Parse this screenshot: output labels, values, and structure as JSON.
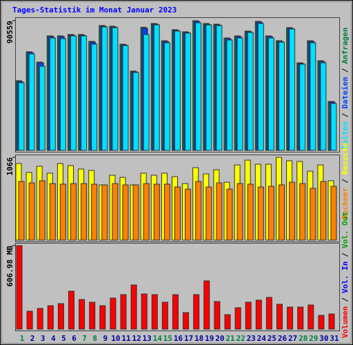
{
  "chart_data": [
    {
      "type": "bar",
      "title": "Tages-Statistik im Monat Januar 2023",
      "legend_separator": "/",
      "ylim": [
        0,
        90559
      ],
      "yticks": [
        90559
      ],
      "series": [
        {
          "name": "Seiten",
          "color": "#00e0ff",
          "values": [
            47200,
            67430,
            58770,
            78520,
            78040,
            79960,
            79960,
            74180,
            86230,
            85740,
            73210,
            54440,
            80930,
            87670,
            75140,
            83330,
            81890,
            89110,
            87670,
            87190,
            77070,
            78520,
            82370,
            88630,
            78520,
            75620,
            84780,
            60210,
            75140,
            61180,
            32750
          ]
        },
        {
          "name": "Dateien",
          "color": "#0040ff",
          "values": [
            48150,
            68380,
            61160,
            79460,
            79460,
            80430,
            80430,
            75610,
            86690,
            86210,
            73680,
            54900,
            85260,
            88130,
            76090,
            83800,
            82350,
            90050,
            88130,
            87650,
            78020,
            79460,
            82830,
            89600,
            79460,
            76090,
            85240,
            60680,
            76090,
            62120,
            33700
          ]
        },
        {
          "name": "Anfragen",
          "color": "#008040",
          "values": [
            48650,
            68880,
            61660,
            79960,
            79960,
            80930,
            80930,
            76110,
            87190,
            86710,
            74180,
            55400,
            86000,
            88630,
            76590,
            84300,
            82850,
            90559,
            88630,
            88150,
            78520,
            79960,
            83330,
            90100,
            79960,
            76590,
            85740,
            61180,
            76590,
            62620,
            34200
          ]
        }
      ]
    },
    {
      "type": "bar",
      "legend_separator": "/",
      "ylim": [
        0,
        1066
      ],
      "yticks": [
        1066
      ],
      "series": [
        {
          "name": "Rechner",
          "color": "#ff8000",
          "values": [
            755,
            737,
            764,
            728,
            720,
            728,
            728,
            720,
            711,
            728,
            711,
            711,
            728,
            720,
            720,
            684,
            657,
            755,
            684,
            737,
            657,
            728,
            720,
            684,
            693,
            711,
            746,
            728,
            666,
            755,
            693
          ]
        },
        {
          "name": "Besuche",
          "color": "#ffff00",
          "values": [
            986,
            871,
            950,
            862,
            986,
            959,
            915,
            897,
            711,
            835,
            808,
            711,
            862,
            835,
            862,
            817,
            728,
            933,
            853,
            906,
            746,
            968,
            1030,
            977,
            977,
            1066,
            1022,
            1013,
            888,
            968,
            764
          ]
        }
      ]
    },
    {
      "type": "bar",
      "legend_separator": "/",
      "ylim": [
        0,
        606.98
      ],
      "yticks": [
        {
          "value": 606.98,
          "label": "606.98 MB"
        }
      ],
      "categories": [
        "1",
        "2",
        "3",
        "4",
        "5",
        "6",
        "7",
        "8",
        "9",
        "10",
        "11",
        "12",
        "13",
        "14",
        "15",
        "16",
        "17",
        "18",
        "19",
        "20",
        "21",
        "22",
        "23",
        "24",
        "25",
        "26",
        "27",
        "28",
        "29",
        "30",
        "31"
      ],
      "tick_colors": [
        "#008040",
        "#0000a0",
        "#0000a0",
        "#0000a0",
        "#0000a0",
        "#0000a0",
        "#008040",
        "#008040",
        "#0000a0",
        "#0000a0",
        "#0000a0",
        "#0000a0",
        "#0000a0",
        "#008040",
        "#008040",
        "#0000a0",
        "#0000a0",
        "#0000a0",
        "#0000a0",
        "#0000a0",
        "#008040",
        "#008040",
        "#0000a0",
        "#0000a0",
        "#0000a0",
        "#0000a0",
        "#0000a0",
        "#008040",
        "#008040",
        "#0000a0",
        "#0000a0"
      ],
      "series": [
        {
          "name": "Volumen",
          "color": "#ff0000",
          "values": [
            606.98,
            130.4,
            150.5,
            170.5,
            185.6,
            275.9,
            215.7,
            195.6,
            170.5,
            225.7,
            250.8,
            321.0,
            255.8,
            250.8,
            195.6,
            250.8,
            120.4,
            250.8,
            351.1,
            200.6,
            105.3,
            155.5,
            195.6,
            210.7,
            230.7,
            180.6,
            160.5,
            160.5,
            175.6,
            100.3,
            110.4
          ]
        }
      ],
      "extra_legend": [
        {
          "name": "Vol. In",
          "color": "#0000ff"
        },
        {
          "name": "Vol. Out",
          "color": "#00a000"
        }
      ]
    }
  ]
}
